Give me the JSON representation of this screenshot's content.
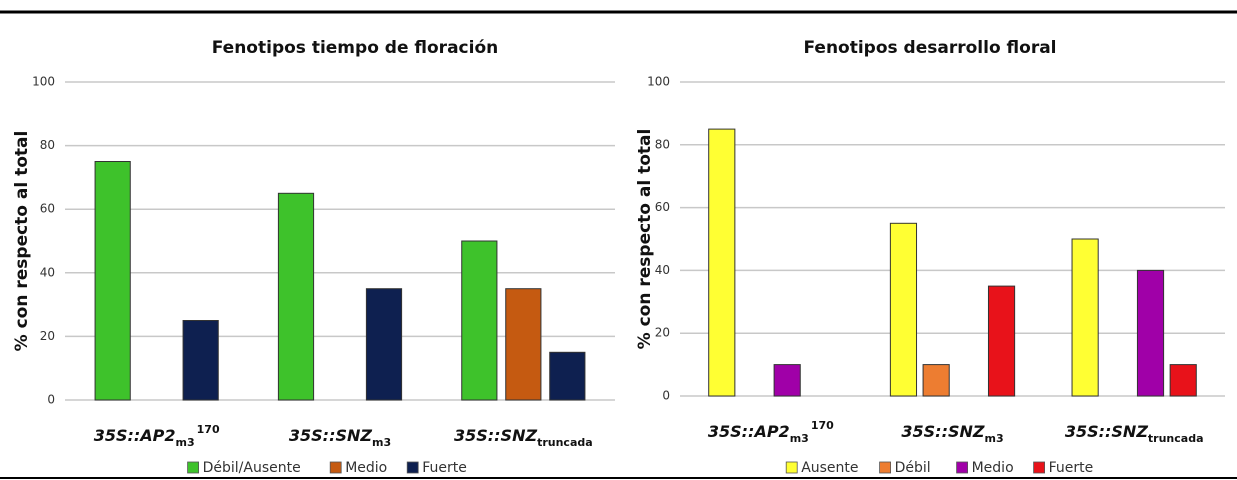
{
  "chart_data": [
    {
      "type": "bar",
      "title": "Fenotipos tiempo de floración",
      "y_label": "% con respecto al total",
      "categories": [
        {
          "base": "35S::AP2",
          "sub": "m3",
          "sup": "170"
        },
        {
          "base": "35S::SNZ",
          "sub": "m3"
        },
        {
          "base": "35S::SNZ",
          "sub": "truncada"
        }
      ],
      "series": [
        {
          "name": "Débil/Ausente",
          "color": "#3ec22b",
          "values": [
            75,
            65,
            50
          ]
        },
        {
          "name": "Medio",
          "color": "#c55a11",
          "values": [
            0,
            0,
            35
          ]
        },
        {
          "name": "Fuerte",
          "color": "#0e2050",
          "values": [
            25,
            35,
            15
          ]
        }
      ],
      "ylim": [
        0,
        100
      ],
      "yticks": [
        0,
        20,
        40,
        60,
        80,
        100
      ],
      "grid": true,
      "legend": "bottom"
    },
    {
      "type": "bar",
      "title": "Fenotipos desarrollo floral",
      "y_label": "% con respecto al total",
      "categories": [
        {
          "base": "35S::AP2",
          "sub": "m3",
          "sup": "170"
        },
        {
          "base": "35S::SNZ",
          "sub": "m3"
        },
        {
          "base": "35S::SNZ",
          "sub": "truncada"
        }
      ],
      "series": [
        {
          "name": "Ausente",
          "color": "#ffff33",
          "values": [
            85,
            55,
            50
          ]
        },
        {
          "name": "Débil",
          "color": "#ed7d31",
          "values": [
            0,
            10,
            0
          ]
        },
        {
          "name": "Medio",
          "color": "#a000a8",
          "values": [
            10,
            0,
            40
          ]
        },
        {
          "name": "Fuerte",
          "color": "#e8121a",
          "values": [
            0,
            35,
            10
          ]
        }
      ],
      "ylim": [
        0,
        100
      ],
      "yticks": [
        0,
        20,
        40,
        60,
        80,
        100
      ],
      "grid": true,
      "legend": "bottom"
    }
  ]
}
